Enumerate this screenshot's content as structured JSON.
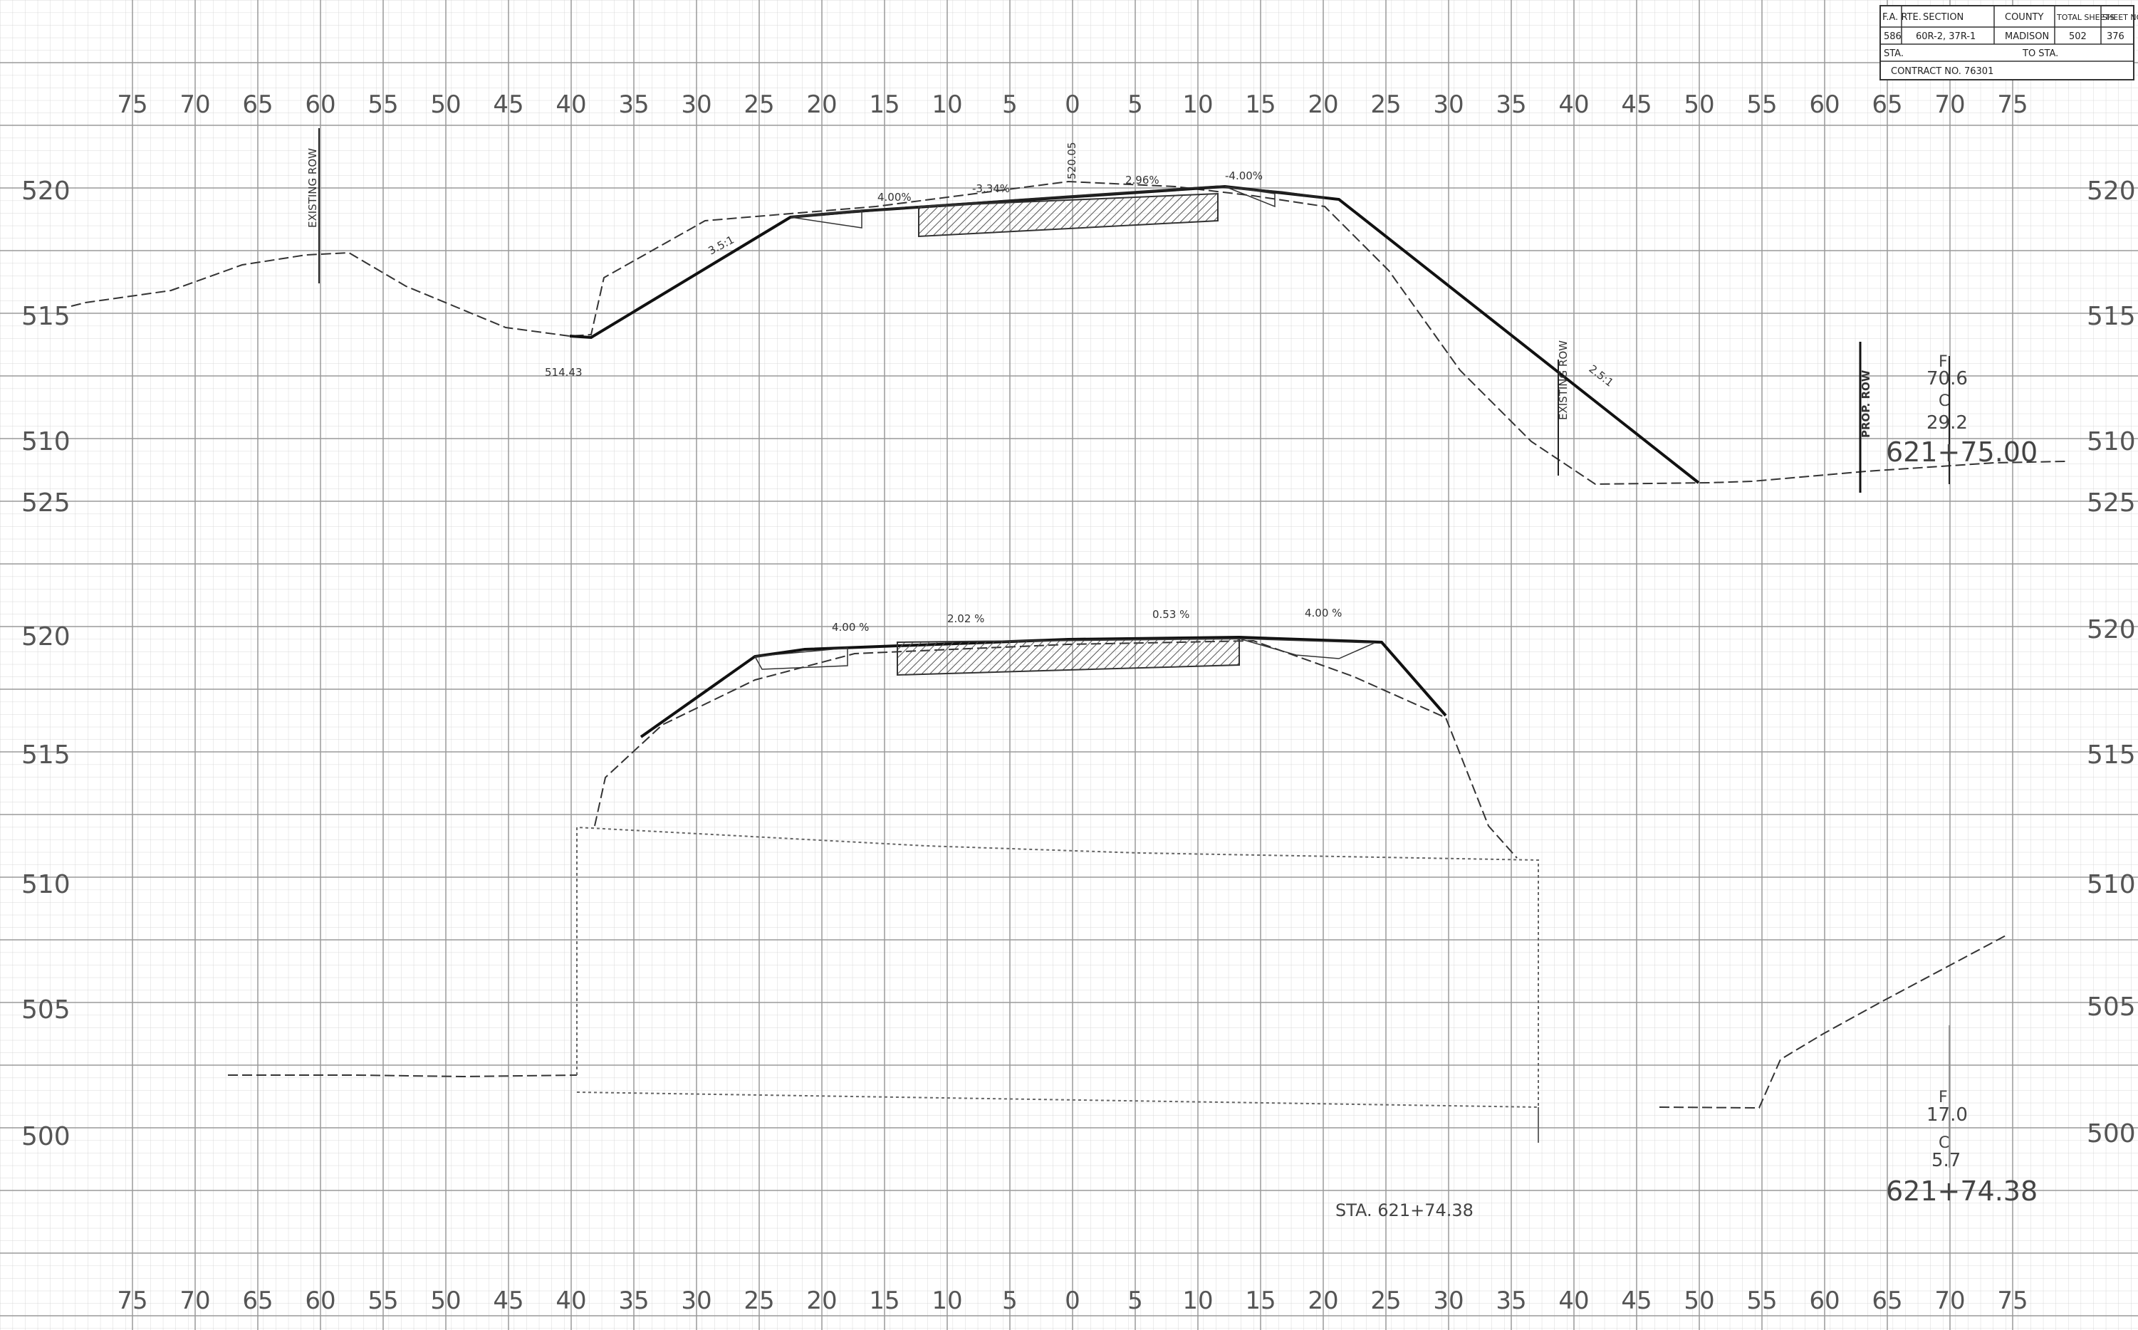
{
  "title_block": {
    "headers": [
      "F.A. RTE.",
      "SECTION",
      "COUNTY",
      "TOTAL SHEETS",
      "SHEET NO."
    ],
    "values": [
      "586",
      "60R-2, 37R-1",
      "MADISON",
      "502",
      "376"
    ],
    "sta_label": "STA.",
    "to_sta_label": "TO STA.",
    "contract": "CONTRACT NO. 76301"
  },
  "offset_ticks": [
    "75",
    "70",
    "65",
    "60",
    "55",
    "50",
    "45",
    "40",
    "35",
    "30",
    "25",
    "20",
    "15",
    "10",
    "5",
    "0",
    "5",
    "10",
    "15",
    "20",
    "25",
    "30",
    "35",
    "40",
    "45",
    "50",
    "55",
    "60",
    "65",
    "70",
    "75"
  ],
  "upper_section": {
    "elevation_labels": [
      "520",
      "515",
      "510"
    ],
    "annotations": {
      "existing_row_left": "EXISTING ROW",
      "existing_row_right": "EXISTING ROW",
      "prop_row": "PROP. ROW",
      "slope_left": "3.5:1",
      "slope_right": "2.5:1",
      "cross_slope_1": "4.00%",
      "cross_slope_2": "-3.34%",
      "cl_elevation": "520.05",
      "cross_slope_3": "2.96%",
      "cross_slope_4": "-4.00%",
      "toe_elevation": "514.43"
    },
    "station_block": {
      "fill_label": "F",
      "fill_value": "70.6",
      "cut_label": "C",
      "cut_value": "29.2",
      "station": "621+75.00"
    }
  },
  "lower_section": {
    "elevation_labels": [
      "525",
      "520",
      "515",
      "510",
      "505",
      "500"
    ],
    "annotations": {
      "cross_slope_1": "4.00 %",
      "cross_slope_2": "2.02 %",
      "cross_slope_3": "0.53 %",
      "cross_slope_4": "4.00 %",
      "station_text": "STA. 621+74.38"
    },
    "station_block": {
      "fill_label": "F",
      "fill_value": "17.0",
      "cut_label": "C",
      "cut_value": "5.7",
      "station": "621+74.38"
    }
  }
}
